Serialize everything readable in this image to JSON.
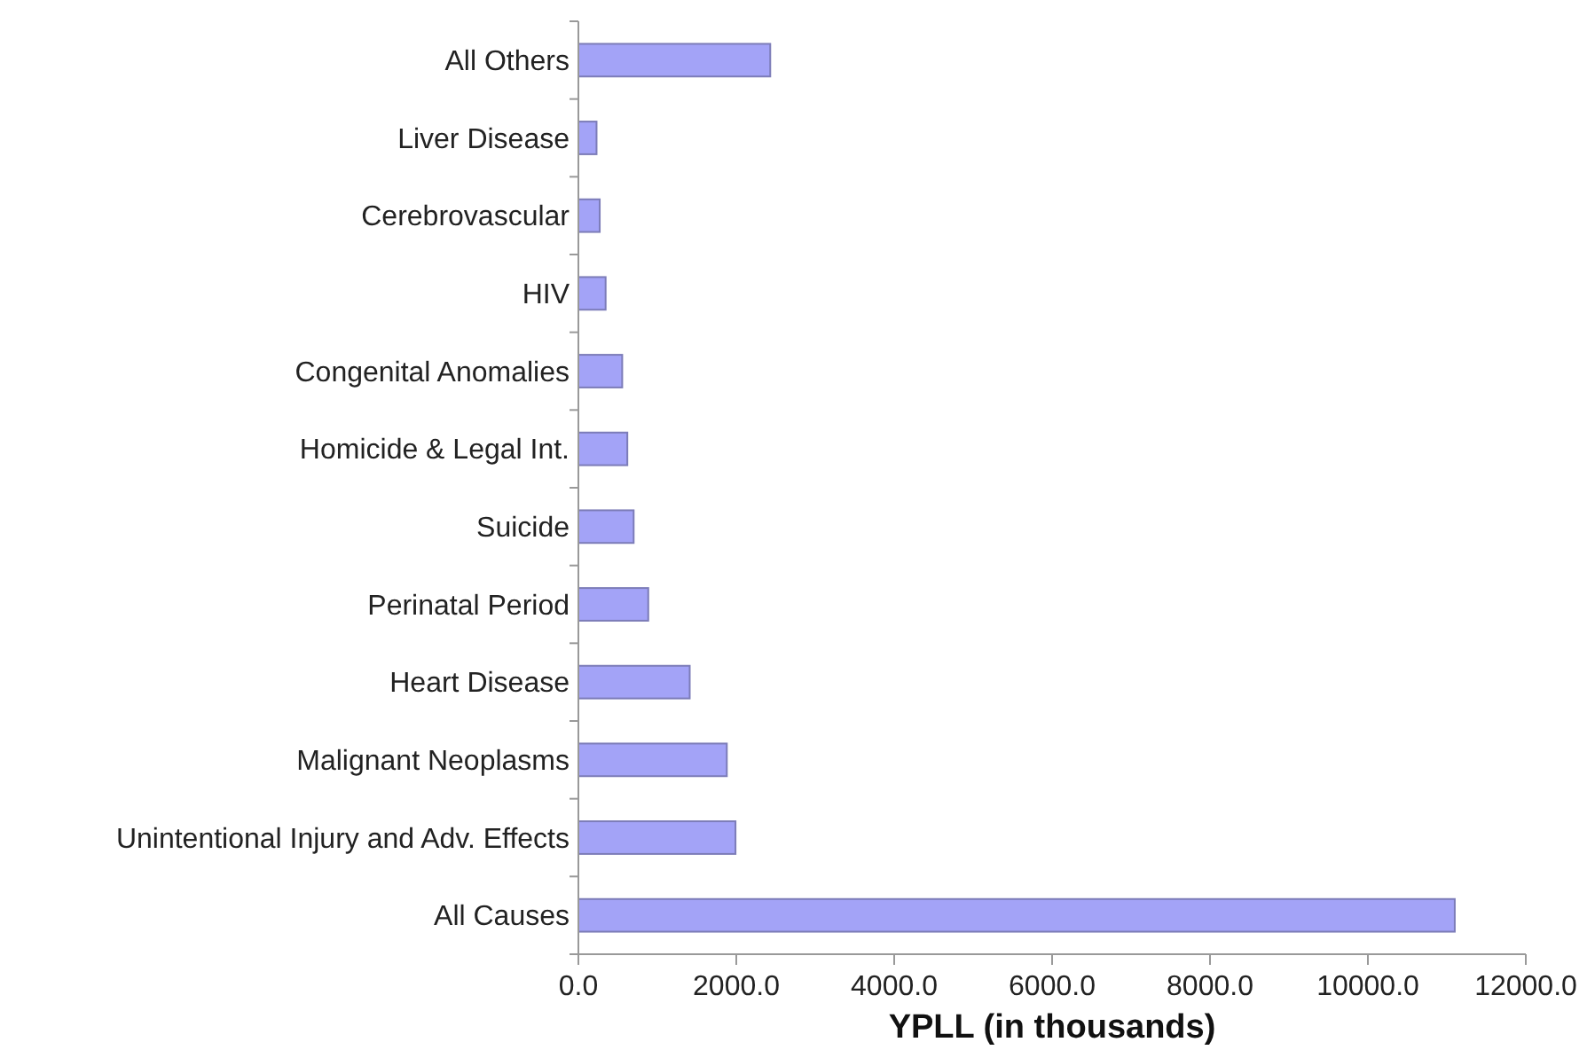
{
  "chart_data": {
    "type": "bar",
    "orientation": "horizontal",
    "xlabel": "YPLL (in thousands)",
    "categories": [
      "All Others",
      "Liver Disease",
      "Cerebrovascular",
      "HIV",
      "Congenital Anomalies",
      "Homicide & Legal Int.",
      "Suicide",
      "Perinatal Period",
      "Heart Disease",
      "Malignant Neoplasms",
      "Unintentional Injury and Adv. Effects",
      "All Causes"
    ],
    "values": [
      2430,
      230,
      270,
      345,
      555,
      620,
      700,
      885,
      1410,
      1880,
      1990,
      11100
    ],
    "color": "#a3a3f7",
    "xlim": [
      0,
      12000
    ],
    "xticks": [
      {
        "value": 0,
        "label": "0.0"
      },
      {
        "value": 2000,
        "label": "2000.0"
      },
      {
        "value": 4000,
        "label": "4000.0"
      },
      {
        "value": 6000,
        "label": "6000.0"
      },
      {
        "value": 8000,
        "label": "8000.0"
      },
      {
        "value": 10000,
        "label": "10000.0"
      },
      {
        "value": 12000,
        "label": "12000.0"
      }
    ],
    "grid": false
  }
}
